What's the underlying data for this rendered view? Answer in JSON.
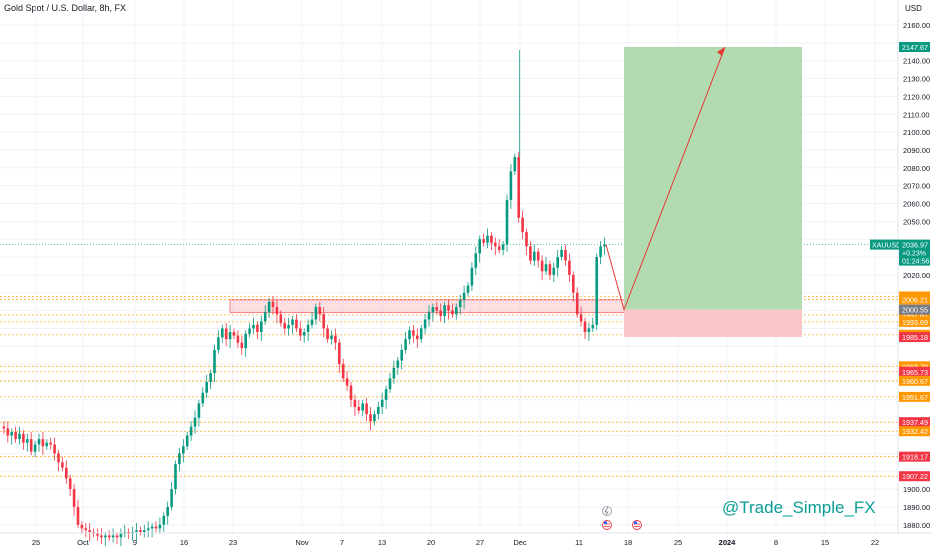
{
  "header": {
    "symbol_title": "Gold Spot / U.S. Dollar, 8h, FX",
    "currency": "USD"
  },
  "watermark": "@Trade_Simple_FX",
  "colors": {
    "up": "#089981",
    "down": "#f23645",
    "target_zone": "#b2dbb1",
    "stop_zone": "#fbc5c9",
    "level_line": "#ff9800",
    "arrow": "#e53935"
  },
  "chart_data": {
    "type": "candlestick",
    "title": "Gold Spot / U.S. Dollar, 8h, FX",
    "symbol": "XAUUSD",
    "ylim": [
      1870,
      2167
    ],
    "y_ticks": [
      1880,
      1890,
      1900,
      1910,
      1920,
      1930,
      1940,
      1950,
      1960,
      1970,
      1980,
      1990,
      2000,
      2010,
      2020,
      2030,
      2040,
      2050,
      2060,
      2070,
      2080,
      2090,
      2100,
      2110,
      2120,
      2130,
      2140,
      2150,
      2160
    ],
    "x_ticks": [
      "25",
      "Oct",
      "9",
      "16",
      "23",
      "Nov",
      "7",
      "13",
      "20",
      "27",
      "Dec",
      "11",
      "18",
      "25",
      "2024",
      "8",
      "15",
      "22"
    ],
    "closes": [
      1935,
      1934,
      1930,
      1932,
      1928,
      1931,
      1926,
      1928,
      1921,
      1925,
      1928,
      1924,
      1926,
      1925,
      1920,
      1915,
      1912,
      1906,
      1900,
      1890,
      1880,
      1878,
      1877,
      1876,
      1875,
      1874,
      1873,
      1874,
      1873,
      1874,
      1873,
      1875,
      1876,
      1875,
      1876,
      1877,
      1876,
      1877,
      1878,
      1879,
      1878,
      1880,
      1885,
      1890,
      1900,
      1914,
      1920,
      1924,
      1930,
      1935,
      1940,
      1948,
      1954,
      1960,
      1965,
      1978,
      1985,
      1990,
      1984,
      1988,
      1986,
      1982,
      1979,
      1987,
      1990,
      1992,
      1988,
      1994,
      1999,
      2005,
      2002,
      1998,
      1993,
      1990,
      1992,
      1995,
      1990,
      1986,
      1988,
      1992,
      1995,
      2002,
      1998,
      1990,
      1984,
      1986,
      1982,
      1970,
      1962,
      1958,
      1950,
      1946,
      1944,
      1948,
      1942,
      1938,
      1942,
      1946,
      1950,
      1956,
      1962,
      1968,
      1972,
      1978,
      1984,
      1989,
      1986,
      1984,
      1990,
      1995,
      1999,
      2002,
      2000,
      1997,
      2003,
      2000,
      1998,
      2002,
      2006,
      2010,
      2014,
      2024,
      2032,
      2040,
      2038,
      2042,
      2038,
      2036,
      2034,
      2037,
      2062,
      2078,
      2086,
      2052,
      2044,
      2036,
      2028,
      2033,
      2028,
      2022,
      2026,
      2020,
      2024,
      2030,
      2034,
      2028,
      2020,
      2010,
      1998,
      1994,
      1988,
      1990,
      1992,
      2030,
      2036,
      2036.97
    ],
    "current_price": "2036.97",
    "change_pct": "+0.23%",
    "countdown": "01:24:56",
    "levels": [
      {
        "price": 2007.91,
        "label": "2007.91"
      },
      {
        "price": 2006.21,
        "label": "2006.21"
      },
      {
        "price": 1997.61,
        "label": "1997.61"
      },
      {
        "price": 1993.69,
        "label": "1993.69"
      },
      {
        "price": 1986.46,
        "label": "1986.46"
      },
      {
        "price": 1968.79,
        "label": "1968.79"
      },
      {
        "price": 1965.73,
        "label": "1965.73"
      },
      {
        "price": 1960.67,
        "label": "1960.67"
      },
      {
        "price": 1951.67,
        "label": "1951.67"
      },
      {
        "price": 1937.49,
        "label": "1937.49"
      },
      {
        "price": 1932.42,
        "label": "1932.42"
      },
      {
        "price": 1918.17,
        "label": "1918.17"
      },
      {
        "price": 1907.22,
        "label": "1907.22"
      }
    ],
    "scale_labels": [
      {
        "price": 2147.67,
        "label": "2147.67",
        "color": "#089981"
      },
      {
        "price": 2000.55,
        "label": "2000.55",
        "color": "#787b86"
      },
      {
        "price": 1985.18,
        "label": "1985.18",
        "color": "#f23645"
      }
    ],
    "demand_zone": [
      1999,
      2006
    ],
    "position": {
      "entry": 2000.55,
      "target": 2147.67,
      "stop": 1985.18
    },
    "projection": [
      2036.97,
      2000.55,
      2147.67
    ]
  }
}
